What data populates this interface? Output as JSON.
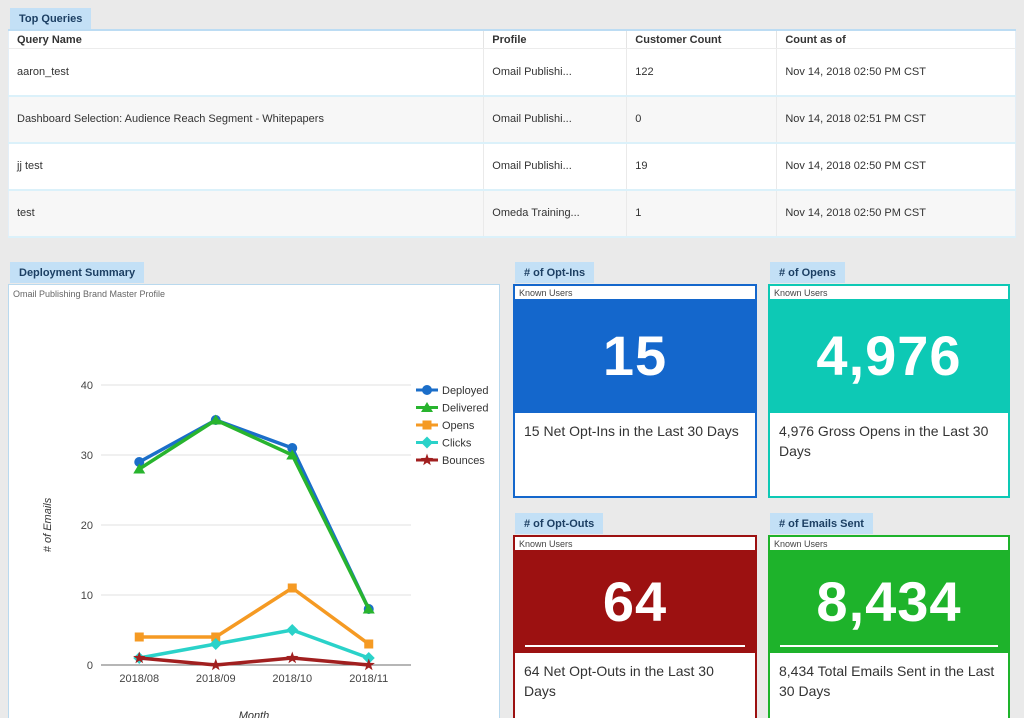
{
  "theme": {
    "page_bg": "#eaeaea",
    "tab_bg": "#c3e0f6",
    "tab_text": "#1c3f63"
  },
  "top_queries": {
    "tab_label": "Top Queries",
    "columns": [
      "Query Name",
      "Profile",
      "Customer Count",
      "Count as of"
    ],
    "rows": [
      {
        "query_name": "aaron_test",
        "profile": "Omail Publishi...",
        "customer_count": "122",
        "count_as_of": "Nov 14, 2018 02:50 PM CST"
      },
      {
        "query_name": "Dashboard Selection: Audience Reach Segment - Whitepapers",
        "profile": "Omail Publishi...",
        "customer_count": "0",
        "count_as_of": "Nov 14, 2018 02:51 PM CST"
      },
      {
        "query_name": "jj test",
        "profile": "Omail Publishi...",
        "customer_count": "19",
        "count_as_of": "Nov 14, 2018 02:50 PM CST"
      },
      {
        "query_name": "test",
        "profile": "Omeda Training...",
        "customer_count": "1",
        "count_as_of": "Nov 14, 2018 02:50 PM CST"
      }
    ]
  },
  "deployment_summary": {
    "tab_label": "Deployment Summary"
  },
  "chart_data": {
    "type": "line",
    "title": "Omail Publishing Brand Master Profile",
    "categories": [
      "2018/08",
      "2018/09",
      "2018/10",
      "2018/11"
    ],
    "series": [
      {
        "name": "Deployed",
        "color": "#1b6ec9",
        "marker": "circle",
        "values": [
          29,
          35,
          31,
          8
        ]
      },
      {
        "name": "Delivered",
        "color": "#28b42e",
        "marker": "triangle",
        "values": [
          28,
          35,
          30,
          8
        ]
      },
      {
        "name": "Opens",
        "color": "#f59a23",
        "marker": "square",
        "values": [
          4,
          4,
          11,
          3
        ]
      },
      {
        "name": "Clicks",
        "color": "#2ad2c9",
        "marker": "diamond",
        "values": [
          1,
          3,
          5,
          1
        ]
      },
      {
        "name": "Bounces",
        "color": "#a11f1f",
        "marker": "star",
        "values": [
          1,
          0,
          1,
          0
        ]
      }
    ],
    "xlabel": "Month",
    "ylabel": "# of Emails",
    "ylim": [
      0,
      40
    ],
    "yticks": [
      0,
      10,
      20,
      30,
      40
    ],
    "grid": true,
    "legend_position": "right"
  },
  "kpi_cards": [
    {
      "tab_label": "# of Opt-Ins",
      "subtitle": "Known Users",
      "value": "15",
      "description": "15 Net Opt-Ins in the Last 30 Days",
      "color": "#1467cc",
      "underline": false
    },
    {
      "tab_label": "# of Opens",
      "subtitle": "Known Users",
      "value": "4,976",
      "description": "4,976 Gross Opens in the Last 30 Days",
      "color": "#0dc9b5",
      "underline": false
    },
    {
      "tab_label": "# of Opt-Outs",
      "subtitle": "Known Users",
      "value": "64",
      "description": "64 Net Opt-Outs in the Last 30 Days",
      "color": "#9c1111",
      "underline": true
    },
    {
      "tab_label": "# of Emails Sent",
      "subtitle": "Known Users",
      "value": "8,434",
      "description": "8,434 Total Emails Sent in the Last 30 Days",
      "color": "#1eb32b",
      "underline": true
    }
  ]
}
